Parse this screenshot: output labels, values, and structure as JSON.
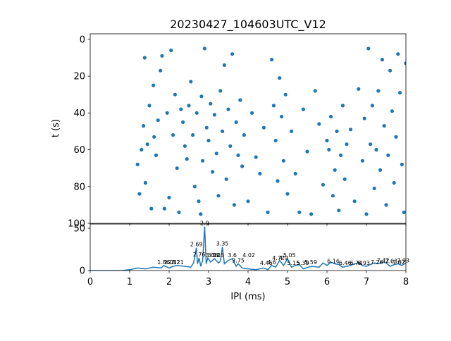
{
  "colors": {
    "series": "#1f77b4",
    "axes": "#000000",
    "background": "#ffffff"
  },
  "chart_data": [
    {
      "type": "scatter",
      "title": "20230427_104603UTC_V12",
      "xlabel": "",
      "ylabel": "t (s)",
      "xlim": [
        0,
        8
      ],
      "ylim": [
        100,
        -3
      ],
      "y_inverted": true,
      "xticks": [
        0,
        1,
        2,
        3,
        4,
        5,
        6,
        7,
        8
      ],
      "yticks": [
        0,
        20,
        40,
        60,
        80,
        100
      ],
      "ytick_labels": [
        "0",
        "20",
        "40",
        "60",
        "80",
        "100"
      ],
      "grid": false,
      "marker": "filled-circle",
      "series": [
        {
          "points": [
            [
              1.2,
              68
            ],
            [
              1.25,
              84
            ],
            [
              1.3,
              60
            ],
            [
              1.35,
              47
            ],
            [
              1.38,
              10
            ],
            [
              1.4,
              78
            ],
            [
              1.45,
              57
            ],
            [
              1.5,
              36
            ],
            [
              1.55,
              92
            ],
            [
              1.6,
              25
            ],
            [
              1.62,
              53
            ],
            [
              1.67,
              63
            ],
            [
              1.72,
              44
            ],
            [
              1.78,
              17
            ],
            [
              1.82,
              9
            ],
            [
              1.88,
              92
            ],
            [
              1.95,
              40
            ],
            [
              2.0,
              86
            ],
            [
              2.05,
              6
            ],
            [
              2.1,
              52
            ],
            [
              2.15,
              30
            ],
            [
              2.2,
              70
            ],
            [
              2.25,
              94
            ],
            [
              2.3,
              38
            ],
            [
              2.35,
              45
            ],
            [
              2.4,
              58
            ],
            [
              2.45,
              65
            ],
            [
              2.5,
              36
            ],
            [
              2.55,
              23
            ],
            [
              2.6,
              52
            ],
            [
              2.65,
              80
            ],
            [
              2.7,
              40
            ],
            [
              2.75,
              88
            ],
            [
              2.8,
              95
            ],
            [
              2.82,
              31
            ],
            [
              2.85,
              66
            ],
            [
              2.9,
              5
            ],
            [
              2.95,
              48
            ],
            [
              3.0,
              55
            ],
            [
              3.05,
              35
            ],
            [
              3.1,
              72
            ],
            [
              3.15,
              41
            ],
            [
              3.2,
              62
            ],
            [
              3.25,
              85
            ],
            [
              3.3,
              28
            ],
            [
              3.35,
              50
            ],
            [
              3.4,
              14
            ],
            [
              3.45,
              76
            ],
            [
              3.5,
              38
            ],
            [
              3.55,
              58
            ],
            [
              3.6,
              8
            ],
            [
              3.65,
              90
            ],
            [
              3.7,
              45
            ],
            [
              3.75,
              63
            ],
            [
              3.8,
              33
            ],
            [
              3.85,
              69
            ],
            [
              3.9,
              52
            ],
            [
              4.0,
              88
            ],
            [
              4.1,
              40
            ],
            [
              4.2,
              64
            ],
            [
              4.3,
              73
            ],
            [
              4.4,
              48
            ],
            [
              4.5,
              94
            ],
            [
              4.6,
              11
            ],
            [
              4.65,
              36
            ],
            [
              4.7,
              55
            ],
            [
              4.75,
              77
            ],
            [
              4.8,
              21
            ],
            [
              4.85,
              42
            ],
            [
              4.9,
              66
            ],
            [
              4.95,
              30
            ],
            [
              5.0,
              84
            ],
            [
              5.1,
              50
            ],
            [
              5.2,
              73
            ],
            [
              5.3,
              94
            ],
            [
              5.4,
              38
            ],
            [
              5.5,
              61
            ],
            [
              5.6,
              95
            ],
            [
              5.7,
              28
            ],
            [
              5.8,
              46
            ],
            [
              5.9,
              79
            ],
            [
              6.0,
              55
            ],
            [
              6.05,
              60
            ],
            [
              6.1,
              42
            ],
            [
              6.15,
              85
            ],
            [
              6.2,
              71
            ],
            [
              6.25,
              50
            ],
            [
              6.3,
              93
            ],
            [
              6.35,
              63
            ],
            [
              6.4,
              36
            ],
            [
              6.45,
              76
            ],
            [
              6.5,
              57
            ],
            [
              6.6,
              49
            ],
            [
              6.7,
              88
            ],
            [
              6.8,
              27
            ],
            [
              6.9,
              66
            ],
            [
              6.95,
              43
            ],
            [
              7.0,
              95
            ],
            [
              7.05,
              5
            ],
            [
              7.1,
              57
            ],
            [
              7.15,
              36
            ],
            [
              7.2,
              81
            ],
            [
              7.25,
              60
            ],
            [
              7.3,
              28
            ],
            [
              7.35,
              71
            ],
            [
              7.4,
              11
            ],
            [
              7.45,
              47
            ],
            [
              7.5,
              90
            ],
            [
              7.55,
              63
            ],
            [
              7.6,
              17
            ],
            [
              7.65,
              39
            ],
            [
              7.7,
              78
            ],
            [
              7.75,
              53
            ],
            [
              7.8,
              8
            ],
            [
              7.85,
              29
            ],
            [
              7.9,
              68
            ],
            [
              7.95,
              94
            ],
            [
              8.0,
              13
            ]
          ]
        }
      ]
    },
    {
      "type": "line",
      "title": "",
      "xlabel": "IPI (ms)",
      "ylabel": "",
      "xlim": [
        0,
        8
      ],
      "ylim": [
        0,
        55
      ],
      "xticks": [
        0,
        1,
        2,
        3,
        4,
        5,
        6,
        7,
        8
      ],
      "xtick_labels": [
        "0",
        "1",
        "2",
        "3",
        "4",
        "5",
        "6",
        "7",
        "8"
      ],
      "yticks": [
        0,
        50
      ],
      "ytick_labels": [
        "0",
        "50"
      ],
      "grid": false,
      "x": [
        0,
        0.8,
        1.0,
        1.2,
        1.4,
        1.6,
        1.8,
        1.86,
        2.0,
        2.1,
        2.2,
        2.4,
        2.55,
        2.62,
        2.69,
        2.72,
        2.76,
        2.8,
        2.85,
        2.9,
        2.94,
        2.98,
        3.05,
        3.15,
        3.25,
        3.3,
        3.35,
        3.4,
        3.5,
        3.6,
        3.7,
        3.75,
        3.85,
        4.0,
        4.2,
        4.4,
        4.5,
        4.6,
        4.7,
        4.8,
        4.9,
        5.0,
        5.1,
        5.2,
        5.3,
        5.4,
        5.6,
        5.8,
        5.9,
        6.0,
        6.1,
        6.2,
        6.3,
        6.4,
        6.5,
        6.6,
        6.7,
        6.8,
        6.9,
        7.0,
        7.1,
        7.2,
        7.3,
        7.4,
        7.5,
        7.6,
        7.7,
        7.8,
        7.9,
        8.0
      ],
      "series": [
        {
          "values": [
            0,
            0,
            1,
            3,
            2,
            4,
            3,
            6,
            3,
            5,
            6,
            5,
            4,
            9,
            27,
            8,
            15,
            5,
            12,
            52,
            8,
            15,
            10,
            14,
            9,
            11,
            28,
            8,
            12,
            14,
            5,
            8,
            3,
            2,
            1,
            3,
            1,
            6,
            4,
            12,
            6,
            14,
            4,
            6,
            7,
            2,
            5,
            4,
            9,
            6,
            10,
            8,
            7,
            4,
            5,
            6,
            8,
            9,
            6,
            5,
            7,
            9,
            8,
            10,
            9,
            5,
            7,
            8,
            6,
            9
          ]
        }
      ],
      "annotations": [
        {
          "x": 1.86,
          "y": 6,
          "text": "1.86"
        },
        {
          "x": 2.03,
          "y": 6,
          "text": "2.03"
        },
        {
          "x": 2.12,
          "y": 6,
          "text": "2.12"
        },
        {
          "x": 2.21,
          "y": 6,
          "text": "2.21"
        },
        {
          "x": 2.69,
          "y": 27,
          "text": "2.69"
        },
        {
          "x": 2.76,
          "y": 15,
          "text": "2.76"
        },
        {
          "x": 2.9,
          "y": 52,
          "text": "2.9"
        },
        {
          "x": 3.08,
          "y": 14,
          "text": "3.08"
        },
        {
          "x": 3.14,
          "y": 14,
          "text": "3.14"
        },
        {
          "x": 3.23,
          "y": 14,
          "text": "3.23"
        },
        {
          "x": 3.35,
          "y": 28,
          "text": "3.35"
        },
        {
          "x": 3.6,
          "y": 14,
          "text": "3.6"
        },
        {
          "x": 3.75,
          "y": 8,
          "text": "3.75"
        },
        {
          "x": 4.46,
          "y": 5,
          "text": "4.46"
        },
        {
          "x": 4.6,
          "y": 6,
          "text": "4.6"
        },
        {
          "x": 4.77,
          "y": 11,
          "text": "4.77"
        },
        {
          "x": 4.9,
          "y": 11,
          "text": "4.9"
        },
        {
          "x": 4.02,
          "y": 14,
          "text": "4.02"
        },
        {
          "x": 5.05,
          "y": 14,
          "text": "5.05"
        },
        {
          "x": 5.39,
          "y": 5,
          "text": "5.39"
        },
        {
          "x": 5.15,
          "y": 5,
          "text": "5.15"
        },
        {
          "x": 5.59,
          "y": 6,
          "text": "5.59"
        },
        {
          "x": 6.16,
          "y": 7,
          "text": "6.16"
        },
        {
          "x": 6.46,
          "y": 5,
          "text": "6.46"
        },
        {
          "x": 6.74,
          "y": 5,
          "text": "6.74"
        },
        {
          "x": 6.93,
          "y": 5,
          "text": "6.93"
        },
        {
          "x": 7.26,
          "y": 6,
          "text": "7.26"
        },
        {
          "x": 7.42,
          "y": 8,
          "text": "7.42"
        },
        {
          "x": 7.63,
          "y": 7,
          "text": "7.63"
        },
        {
          "x": 7.82,
          "y": 6,
          "text": "7.82"
        },
        {
          "x": 7.93,
          "y": 8,
          "text": "7.93"
        }
      ]
    }
  ]
}
